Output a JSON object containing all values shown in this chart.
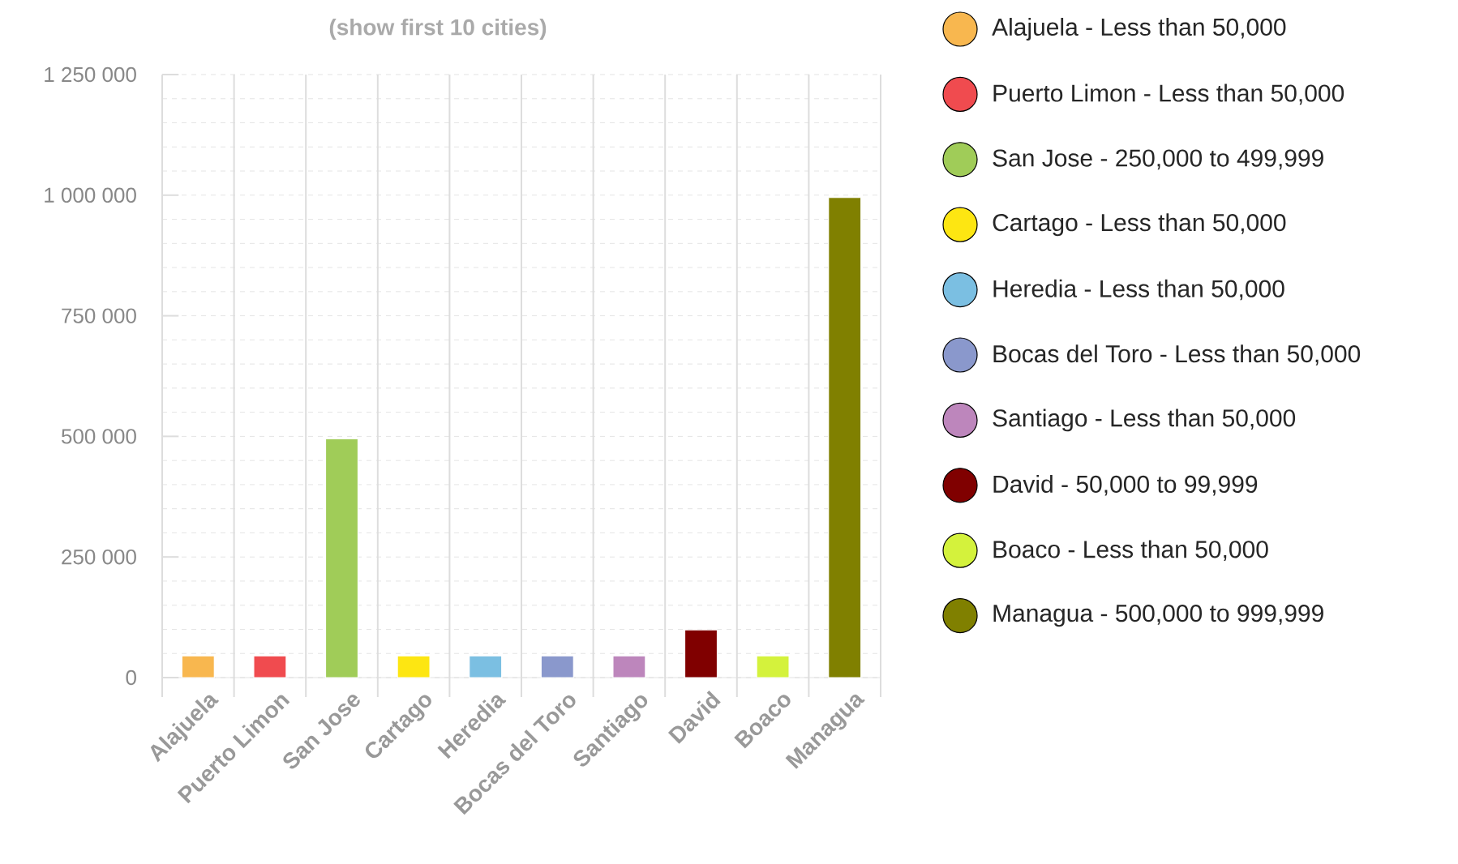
{
  "chart_data": {
    "type": "bar",
    "title": "(show first 10 cities)",
    "categories": [
      "Alajuela",
      "Puerto Limon",
      "San Jose",
      "Cartago",
      "Heredia",
      "Bocas del Toro",
      "Santiago",
      "David",
      "Boaco",
      "Managua"
    ],
    "series": [
      {
        "name": "Alajuela - Less than 50,000",
        "color": "#f8b74f",
        "values": [
          45000,
          null,
          null,
          null,
          null,
          null,
          null,
          null,
          null,
          null
        ]
      },
      {
        "name": "Puerto Limon - Less than 50,000",
        "color": "#f04b4f",
        "values": [
          null,
          45000,
          null,
          null,
          null,
          null,
          null,
          null,
          null,
          null
        ]
      },
      {
        "name": "San Jose - 250,000 to 499,999",
        "color": "#a0cc58",
        "values": [
          null,
          null,
          495000,
          null,
          null,
          null,
          null,
          null,
          null,
          null
        ]
      },
      {
        "name": "Cartago - Less than 50,000",
        "color": "#fde612",
        "values": [
          null,
          null,
          null,
          45000,
          null,
          null,
          null,
          null,
          null,
          null
        ]
      },
      {
        "name": "Heredia - Less than 50,000",
        "color": "#7bbfe2",
        "values": [
          null,
          null,
          null,
          null,
          45000,
          null,
          null,
          null,
          null,
          null
        ]
      },
      {
        "name": "Bocas del Toro - Less than 50,000",
        "color": "#8a98cc",
        "values": [
          null,
          null,
          null,
          null,
          null,
          45000,
          null,
          null,
          null,
          null
        ]
      },
      {
        "name": "Santiago - Less than 50,000",
        "color": "#bd86bc",
        "values": [
          null,
          null,
          null,
          null,
          null,
          null,
          45000,
          null,
          null,
          null
        ]
      },
      {
        "name": "David - 50,000 to 99,999",
        "color": "#800000",
        "values": [
          null,
          null,
          null,
          null,
          null,
          null,
          null,
          99000,
          null,
          null
        ]
      },
      {
        "name": "Boaco - Less than 50,000",
        "color": "#d4f23c",
        "values": [
          null,
          null,
          null,
          null,
          null,
          null,
          null,
          null,
          45000,
          null
        ]
      },
      {
        "name": "Managua - 500,000 to 999,999",
        "color": "#808000",
        "values": [
          null,
          null,
          null,
          null,
          null,
          null,
          null,
          null,
          null,
          995000
        ]
      }
    ],
    "ylim": [
      0,
      1250000
    ],
    "yticks": [
      {
        "value": 0,
        "label": "0"
      },
      {
        "value": 50000,
        "label": null
      },
      {
        "value": 100000,
        "label": null
      },
      {
        "value": 150000,
        "label": null
      },
      {
        "value": 200000,
        "label": null
      },
      {
        "value": 250000,
        "label": "250 000"
      },
      {
        "value": 300000,
        "label": null
      },
      {
        "value": 350000,
        "label": null
      },
      {
        "value": 400000,
        "label": null
      },
      {
        "value": 450000,
        "label": null
      },
      {
        "value": 500000,
        "label": "500 000"
      },
      {
        "value": 550000,
        "label": null
      },
      {
        "value": 600000,
        "label": null
      },
      {
        "value": 650000,
        "label": null
      },
      {
        "value": 700000,
        "label": null
      },
      {
        "value": 750000,
        "label": "750 000"
      },
      {
        "value": 800000,
        "label": null
      },
      {
        "value": 850000,
        "label": null
      },
      {
        "value": 900000,
        "label": null
      },
      {
        "value": 950000,
        "label": null
      },
      {
        "value": 1000000,
        "label": "1 000 000"
      },
      {
        "value": 1050000,
        "label": null
      },
      {
        "value": 1100000,
        "label": null
      },
      {
        "value": 1150000,
        "label": null
      },
      {
        "value": 1200000,
        "label": null
      },
      {
        "value": 1250000,
        "label": "1 250 000"
      }
    ],
    "grid": true,
    "legend": "right"
  }
}
